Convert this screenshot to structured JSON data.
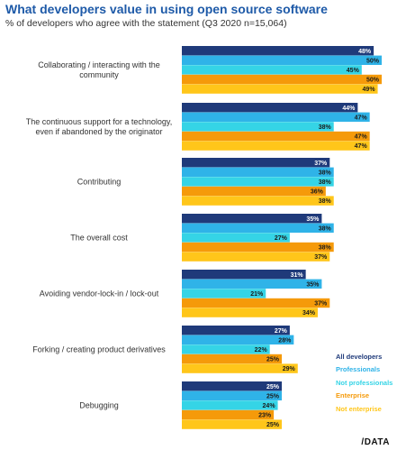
{
  "chart_data": {
    "type": "bar",
    "orientation": "horizontal",
    "title": "What developers value in using open source software",
    "subtitle": "% of developers who agree with the statement (Q3 2020 n=15,064)",
    "xlim": [
      0,
      50
    ],
    "grid": false,
    "legend_position": "bottom-right",
    "categories": [
      "Collaborating / interacting with the community",
      "The continuous support for a technology, even if abandoned by the originator",
      "Contributing",
      "The overall cost",
      "Avoiding vendor-lock-in / lock-out",
      "Forking / creating product derivatives",
      "Debugging"
    ],
    "category_lines": [
      [
        "Collaborating / interacting with the",
        "community"
      ],
      [
        "The continuous support for a technology,",
        "even if abandoned by the originator"
      ],
      [
        "Contributing"
      ],
      [
        "The overall cost"
      ],
      [
        "Avoiding vendor-lock-in / lock-out"
      ],
      [
        "Forking / creating product derivatives"
      ],
      [
        "Debugging"
      ]
    ],
    "series": [
      {
        "name": "All developers",
        "color": "#1f3a7a",
        "values": [
          48,
          44,
          37,
          35,
          31,
          27,
          25
        ]
      },
      {
        "name": "Professionals",
        "color": "#2fb3e8",
        "values": [
          50,
          47,
          38,
          38,
          35,
          28,
          25
        ]
      },
      {
        "name": "Not professionals",
        "color": "#35d4e6",
        "values": [
          45,
          38,
          38,
          27,
          21,
          22,
          24
        ]
      },
      {
        "name": "Enterprise",
        "color": "#f59a0a",
        "values": [
          50,
          47,
          36,
          38,
          37,
          25,
          23
        ]
      },
      {
        "name": "Not enterprise",
        "color": "#ffc61a",
        "values": [
          49,
          47,
          38,
          37,
          34,
          29,
          25
        ]
      }
    ],
    "value_suffix": "%"
  },
  "brand": {
    "logo_text": "/DATA"
  }
}
